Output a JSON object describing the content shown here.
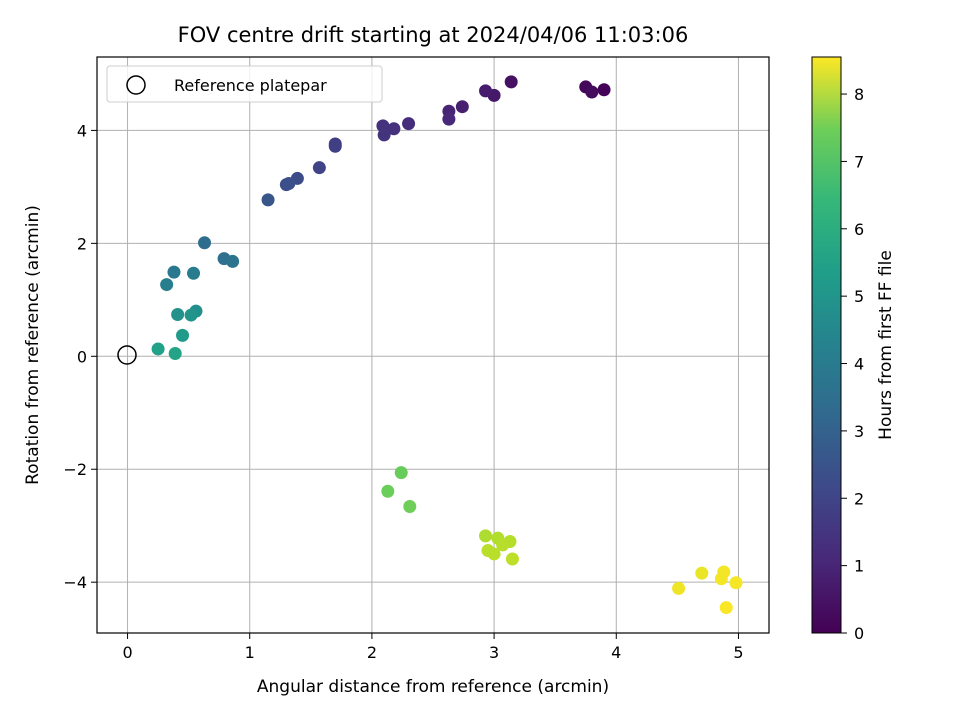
{
  "chart_data": {
    "type": "scatter",
    "title": "FOV centre drift starting at 2024/04/06 11:03:06",
    "xlabel": "Angular distance from reference (arcmin)",
    "ylabel": "Rotation from reference (arcmin)",
    "xlim": [
      -0.25,
      5.25
    ],
    "ylim": [
      -4.9,
      5.3
    ],
    "xticks": [
      0,
      1,
      2,
      3,
      4,
      5
    ],
    "yticks": [
      -4,
      -2,
      0,
      2,
      4
    ],
    "grid": true,
    "legend": {
      "position": "top-left",
      "entries": [
        "Reference platepar"
      ]
    },
    "reference_point": {
      "x": 0,
      "y": 0
    },
    "colorbar": {
      "label": "Hours from first FF file",
      "range": [
        0,
        8.55
      ],
      "ticks": [
        0,
        1,
        2,
        3,
        4,
        5,
        6,
        7,
        8
      ],
      "colormap": "viridis"
    },
    "points": [
      {
        "x": 3.9,
        "y": 4.72,
        "c": 0.05
      },
      {
        "x": 3.75,
        "y": 4.77,
        "c": 0.15
      },
      {
        "x": 3.8,
        "y": 4.68,
        "c": 0.25
      },
      {
        "x": 3.14,
        "y": 4.86,
        "c": 0.4
      },
      {
        "x": 3.0,
        "y": 4.62,
        "c": 0.55
      },
      {
        "x": 2.93,
        "y": 4.7,
        "c": 0.65
      },
      {
        "x": 2.74,
        "y": 4.42,
        "c": 0.75
      },
      {
        "x": 2.63,
        "y": 4.34,
        "c": 0.85
      },
      {
        "x": 2.63,
        "y": 4.2,
        "c": 0.95
      },
      {
        "x": 2.3,
        "y": 4.12,
        "c": 1.1
      },
      {
        "x": 2.18,
        "y": 4.03,
        "c": 1.2
      },
      {
        "x": 2.09,
        "y": 4.08,
        "c": 1.25
      },
      {
        "x": 2.1,
        "y": 3.92,
        "c": 1.3
      },
      {
        "x": 1.7,
        "y": 3.76,
        "c": 1.55
      },
      {
        "x": 1.7,
        "y": 3.72,
        "c": 1.6
      },
      {
        "x": 1.57,
        "y": 3.34,
        "c": 1.75
      },
      {
        "x": 1.39,
        "y": 3.15,
        "c": 1.95
      },
      {
        "x": 1.3,
        "y": 3.04,
        "c": 2.05
      },
      {
        "x": 1.32,
        "y": 3.06,
        "c": 2.1
      },
      {
        "x": 1.15,
        "y": 2.77,
        "c": 2.3
      },
      {
        "x": 0.63,
        "y": 2.01,
        "c": 3.05
      },
      {
        "x": 0.79,
        "y": 1.73,
        "c": 3.15
      },
      {
        "x": 0.86,
        "y": 1.68,
        "c": 3.25
      },
      {
        "x": 0.38,
        "y": 1.49,
        "c": 3.45
      },
      {
        "x": 0.54,
        "y": 1.47,
        "c": 3.55
      },
      {
        "x": 0.32,
        "y": 1.27,
        "c": 3.7
      },
      {
        "x": 0.56,
        "y": 0.8,
        "c": 4.25
      },
      {
        "x": 0.41,
        "y": 0.74,
        "c": 4.35
      },
      {
        "x": 0.52,
        "y": 0.73,
        "c": 4.4
      },
      {
        "x": 0.45,
        "y": 0.37,
        "c": 4.6
      },
      {
        "x": 0.25,
        "y": 0.13,
        "c": 4.85
      },
      {
        "x": 0.39,
        "y": 0.05,
        "c": 4.95
      },
      {
        "x": 2.24,
        "y": -2.06,
        "c": 6.55
      },
      {
        "x": 2.13,
        "y": -2.39,
        "c": 6.6
      },
      {
        "x": 2.31,
        "y": -2.66,
        "c": 6.65
      },
      {
        "x": 2.93,
        "y": -3.18,
        "c": 7.5
      },
      {
        "x": 3.03,
        "y": -3.22,
        "c": 7.55
      },
      {
        "x": 3.13,
        "y": -3.28,
        "c": 7.6
      },
      {
        "x": 3.07,
        "y": -3.34,
        "c": 7.62
      },
      {
        "x": 2.95,
        "y": -3.44,
        "c": 7.65
      },
      {
        "x": 3.0,
        "y": -3.5,
        "c": 7.67
      },
      {
        "x": 3.15,
        "y": -3.59,
        "c": 7.7
      },
      {
        "x": 4.7,
        "y": -3.84,
        "c": 8.3
      },
      {
        "x": 4.88,
        "y": -3.82,
        "c": 8.4
      },
      {
        "x": 4.86,
        "y": -3.94,
        "c": 8.42
      },
      {
        "x": 4.98,
        "y": -4.01,
        "c": 8.45
      },
      {
        "x": 4.51,
        "y": -4.11,
        "c": 8.35
      },
      {
        "x": 4.9,
        "y": -4.45,
        "c": 8.5
      }
    ]
  }
}
